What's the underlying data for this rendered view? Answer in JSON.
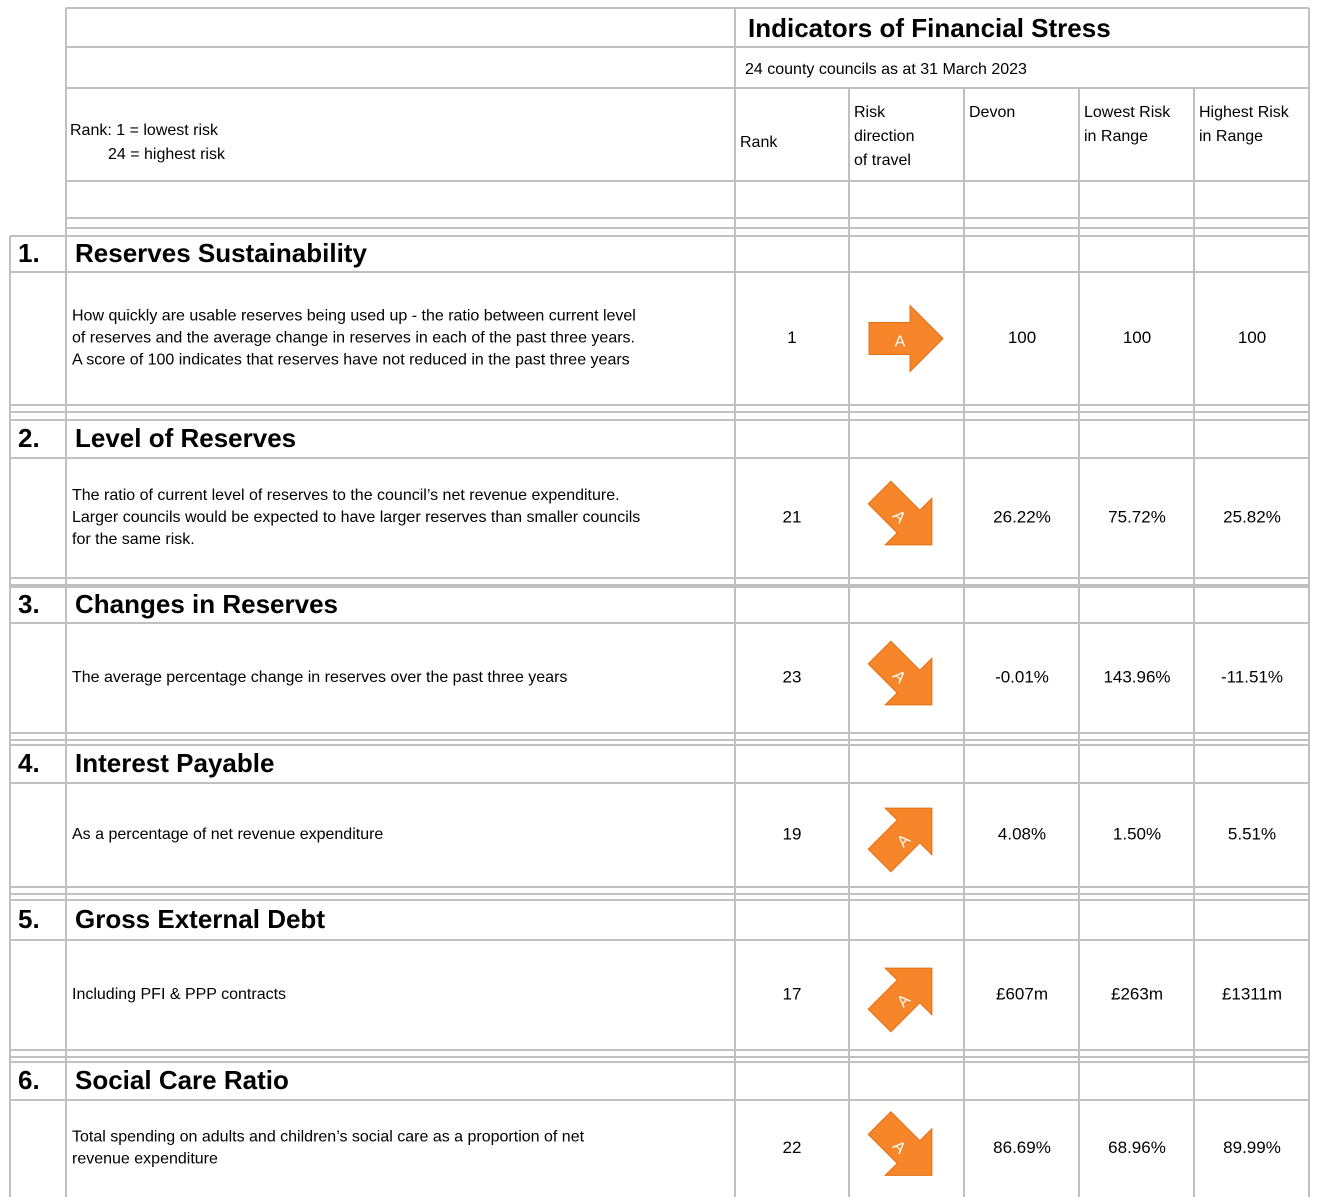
{
  "header": {
    "title": "Indicators of Financial Stress",
    "subtitle": "24 county councils as at 31 March 2023",
    "rank_note": [
      "Rank: 1 = lowest risk",
      "24 = highest risk"
    ],
    "columns": {
      "rank": [
        "Rank"
      ],
      "direction": [
        "Risk",
        "direction",
        "of travel"
      ],
      "devon": [
        "Devon"
      ],
      "lowest": [
        "Lowest Risk",
        "in Range"
      ],
      "highest": [
        "Highest Risk",
        "in Range"
      ]
    }
  },
  "indicators": [
    {
      "number": "1.",
      "title": "Reserves Sustainability",
      "description": [
        "How quickly are usable reserves being used up - the ratio between current level",
        "of reserves and the average change in reserves in each of the past three years.",
        "A score of 100 indicates that reserves have not reduced in the past three years"
      ],
      "rank": "1",
      "arrow_label": "A",
      "devon": "100",
      "lowest": "100",
      "highest": "100"
    },
    {
      "number": "2.",
      "title": "Level of Reserves",
      "description": [
        "The ratio of current level of reserves to the council’s net revenue expenditure.",
        "Larger councils would be expected to have larger reserves than smaller councils",
        "for the same risk."
      ],
      "rank": "21",
      "arrow_label": "A",
      "devon": "26.22%",
      "lowest": "75.72%",
      "highest": "25.82%"
    },
    {
      "number": "3.",
      "title": "Changes in Reserves",
      "description": [
        "The average percentage change in reserves over the past three years"
      ],
      "rank": "23",
      "arrow_label": "A",
      "devon": "-0.01%",
      "lowest": "143.96%",
      "highest": "-11.51%"
    },
    {
      "number": "4.",
      "title": "Interest Payable",
      "description": [
        "As a percentage of net revenue expenditure"
      ],
      "rank": "19",
      "arrow_label": "A",
      "devon": "4.08%",
      "lowest": "1.50%",
      "highest": "5.51%"
    },
    {
      "number": "5.",
      "title": "Gross External Debt",
      "description": [
        "Including PFI & PPP contracts"
      ],
      "rank": "17",
      "arrow_label": "A",
      "devon": "£607m",
      "lowest": "£263m",
      "highest": "£1311m"
    },
    {
      "number": "6.",
      "title": "Social Care Ratio",
      "description": [
        "Total spending on adults and children’s social care as a proportion of net",
        "revenue expenditure"
      ],
      "rank": "22",
      "arrow_label": "A",
      "devon": "86.69%",
      "lowest": "68.96%",
      "highest": "89.99%"
    }
  ]
}
